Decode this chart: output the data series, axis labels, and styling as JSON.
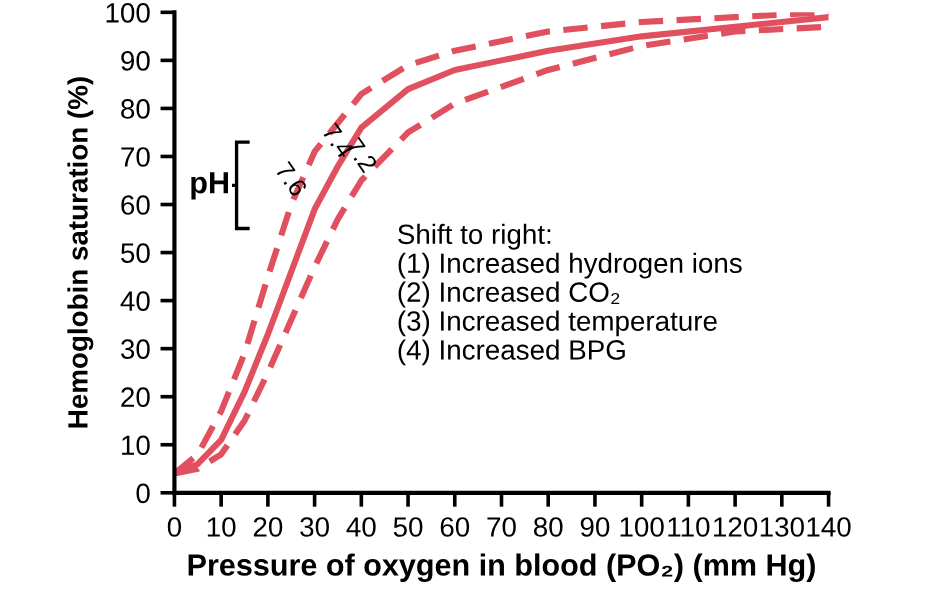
{
  "chart_data": {
    "type": "line",
    "xlabel": "Pressure of oxygen in blood (PO₂) (mm Hg)",
    "ylabel": "Hemoglobin saturation (%)",
    "xlim": [
      0,
      140
    ],
    "xticks": [
      0,
      10,
      20,
      30,
      40,
      50,
      60,
      70,
      80,
      90,
      100,
      110,
      120,
      130,
      140
    ],
    "ylim": [
      0,
      100
    ],
    "yticks": [
      0,
      10,
      20,
      30,
      40,
      50,
      60,
      70,
      80,
      90,
      100
    ],
    "grid": false,
    "legend": false,
    "series": [
      {
        "name": "7.6",
        "color": "#e0505f",
        "line_style": "dashed",
        "x": [
          0,
          5,
          10,
          15,
          20,
          25,
          30,
          40,
          50,
          60,
          80,
          100,
          120,
          140
        ],
        "values": [
          4,
          8,
          17,
          29,
          45,
          60,
          71,
          83,
          89,
          92,
          96,
          98,
          99,
          100
        ]
      },
      {
        "name": "7.4",
        "color": "#e0505f",
        "line_style": "solid",
        "x": [
          0,
          5,
          10,
          15,
          20,
          25,
          30,
          35,
          40,
          50,
          60,
          70,
          80,
          100,
          120,
          140
        ],
        "values": [
          4,
          6,
          11,
          21,
          33,
          46,
          59,
          68,
          76,
          84,
          88,
          90,
          92,
          95,
          97,
          99
        ]
      },
      {
        "name": "7.2",
        "color": "#e0505f",
        "line_style": "dashed",
        "x": [
          0,
          5,
          10,
          15,
          20,
          25,
          30,
          35,
          40,
          50,
          60,
          80,
          100,
          120,
          140
        ],
        "values": [
          4,
          5,
          8,
          15,
          25,
          36,
          47,
          57,
          65,
          75,
          81,
          88,
          93,
          96,
          97
        ]
      }
    ],
    "annotations": [
      "pH",
      "Shift to right:\n(1) Increased hydrogen ions\n(2) Increased CO₂\n(3) Increased temperature\n(4) Increased BPG"
    ]
  }
}
